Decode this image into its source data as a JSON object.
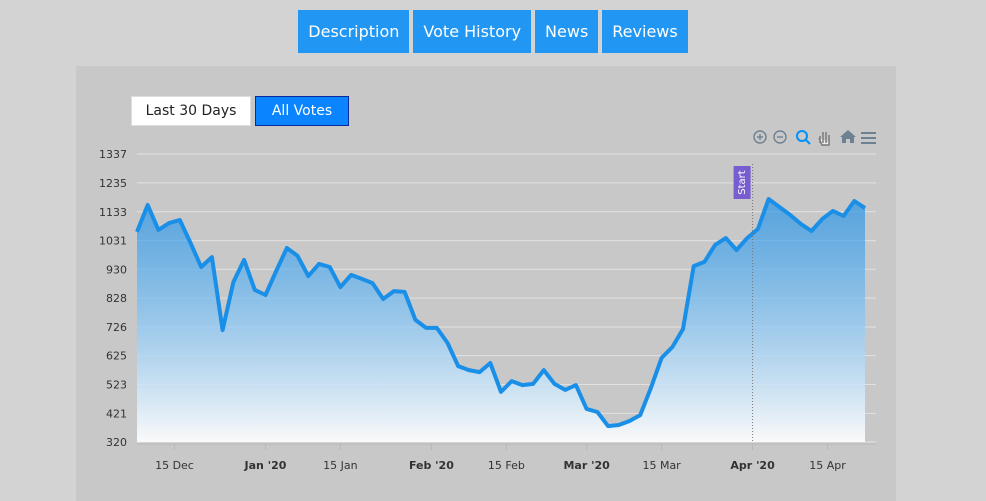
{
  "tabs": [
    "Description",
    "Vote History",
    "News",
    "Reviews"
  ],
  "range_buttons": [
    "Last 30 Days",
    "All Votes"
  ],
  "chart_data": {
    "type": "area",
    "color": "#1a8fe8",
    "x": [
      "2019-12-08",
      "2019-12-10",
      "2019-12-12",
      "2019-12-14",
      "2019-12-16",
      "2019-12-18",
      "2019-12-20",
      "2019-12-22",
      "2019-12-24",
      "2019-12-26",
      "2019-12-28",
      "2019-12-30",
      "2020-01-01",
      "2020-01-03",
      "2020-01-05",
      "2020-01-07",
      "2020-01-09",
      "2020-01-11",
      "2020-01-13",
      "2020-01-15",
      "2020-01-17",
      "2020-01-19",
      "2020-01-21",
      "2020-01-23",
      "2020-01-25",
      "2020-01-27",
      "2020-01-29",
      "2020-01-31",
      "2020-02-02",
      "2020-02-04",
      "2020-02-06",
      "2020-02-08",
      "2020-02-10",
      "2020-02-12",
      "2020-02-14",
      "2020-02-16",
      "2020-02-18",
      "2020-02-20",
      "2020-02-22",
      "2020-02-24",
      "2020-02-26",
      "2020-02-28",
      "2020-03-01",
      "2020-03-03",
      "2020-03-05",
      "2020-03-07",
      "2020-03-09",
      "2020-03-11",
      "2020-03-13",
      "2020-03-15",
      "2020-03-17",
      "2020-03-19",
      "2020-03-21",
      "2020-03-23",
      "2020-03-25",
      "2020-03-27",
      "2020-03-29",
      "2020-03-31",
      "2020-04-02",
      "2020-04-04",
      "2020-04-06",
      "2020-04-08",
      "2020-04-10",
      "2020-04-12",
      "2020-04-14",
      "2020-04-16",
      "2020-04-18",
      "2020-04-20",
      "2020-04-22"
    ],
    "values": [
      1062,
      1157,
      1069,
      1093,
      1104,
      1023,
      938,
      973,
      715,
      885,
      963,
      857,
      839,
      924,
      1005,
      977,
      906,
      949,
      938,
      867,
      910,
      896,
      881,
      825,
      853,
      850,
      751,
      723,
      723,
      670,
      588,
      574,
      567,
      599,
      497,
      535,
      521,
      525,
      574,
      525,
      504,
      521,
      437,
      426,
      376,
      380,
      394,
      415,
      511,
      617,
      655,
      719,
      941,
      956,
      1016,
      1040,
      998,
      1040,
      1072,
      1178,
      1150,
      1122,
      1090,
      1065,
      1107,
      1136,
      1118,
      1171,
      1146
    ],
    "xlim": [
      "2019-12-08",
      "2020-04-22"
    ],
    "xticks": [
      {
        "value": "2019-12-15",
        "label": "15 Dec"
      },
      {
        "value": "2020-01-01",
        "label": "Jan '20"
      },
      {
        "value": "2020-01-15",
        "label": "15 Jan"
      },
      {
        "value": "2020-02-01",
        "label": "Feb '20"
      },
      {
        "value": "2020-02-15",
        "label": "15 Feb"
      },
      {
        "value": "2020-03-01",
        "label": "Mar '20"
      },
      {
        "value": "2020-03-15",
        "label": "15 Mar"
      },
      {
        "value": "2020-04-01",
        "label": "Apr '20"
      },
      {
        "value": "2020-04-15",
        "label": "15 Apr"
      }
    ],
    "ylim": [
      320,
      1337
    ],
    "yticks": [
      320,
      421,
      523,
      625,
      726,
      828,
      930,
      1031,
      1133,
      1235,
      1337
    ],
    "grid": true,
    "annotations": [
      {
        "x": "2020-04-01",
        "label": "Start",
        "color": "#775dd0"
      }
    ]
  }
}
